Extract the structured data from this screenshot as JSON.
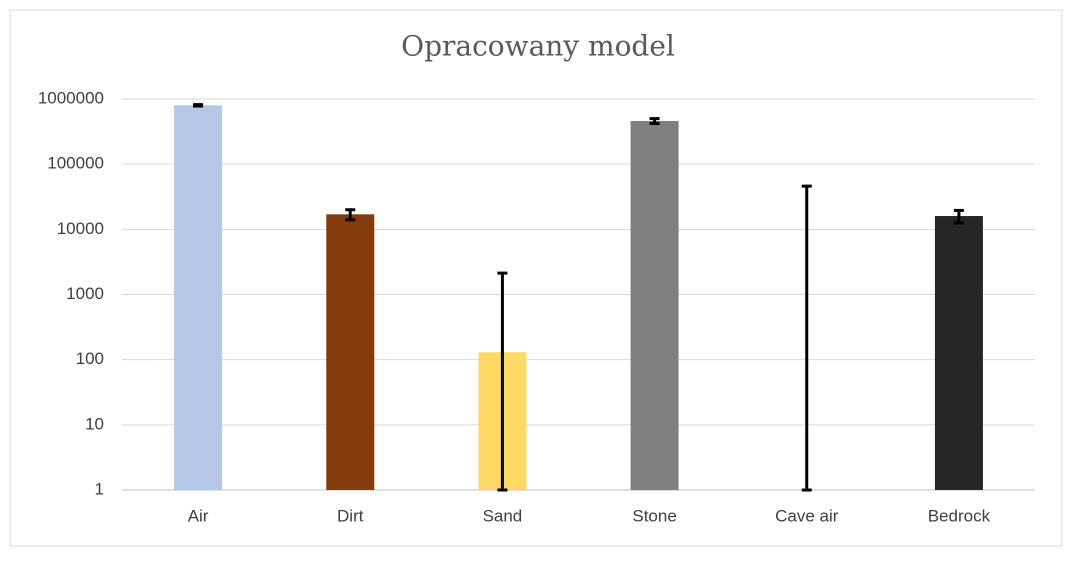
{
  "chart_data": {
    "type": "bar",
    "title": "Opracowany model",
    "categories": [
      "Air",
      "Dirt",
      "Sand",
      "Stone",
      "Cave air",
      "Bedrock"
    ],
    "values": [
      800000,
      17000,
      130,
      460000,
      0,
      16000
    ],
    "errors": [
      20000,
      3000,
      2000,
      40000,
      46000,
      3500
    ],
    "colors": [
      "#b4c7e7",
      "#843c0c",
      "#ffd966",
      "#7f7f7f",
      "#ffffff",
      "#262626"
    ],
    "error_color": "#000000",
    "log_scale": true,
    "ylim": [
      1,
      1000000
    ],
    "yticks": [
      1,
      10,
      100,
      1000,
      10000,
      100000,
      1000000
    ],
    "grid": true
  }
}
